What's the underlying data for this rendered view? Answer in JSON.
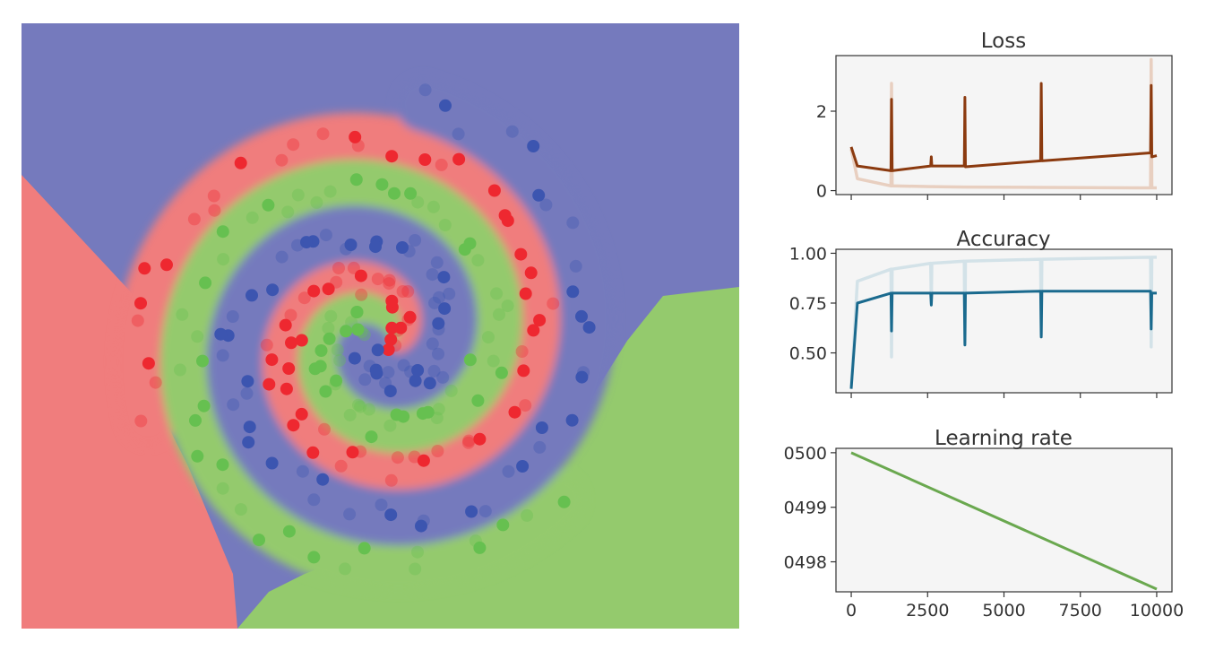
{
  "chart_data": [
    {
      "type": "scatter",
      "title": "",
      "description_colors": {
        "class_red": "#ee2830",
        "class_green": "#66c050",
        "class_blue": "#3c55b0",
        "region_red": "#f07d7d",
        "region_green": "#94ca6d",
        "region_blue": "#757abd"
      },
      "classes": [
        "red",
        "green",
        "blue"
      ],
      "spiral_arms": 3,
      "grid": false
    },
    {
      "type": "line",
      "title": "Loss",
      "x": [
        0,
        200,
        1300,
        1320,
        1340,
        2600,
        2620,
        2640,
        3700,
        3720,
        3740,
        6200,
        6220,
        6240,
        9800,
        9820,
        9840,
        10000
      ],
      "series": [
        {
          "values": [
            1.1,
            0.62,
            0.5,
            2.3,
            0.5,
            0.62,
            0.85,
            0.62,
            0.62,
            2.35,
            0.6,
            0.75,
            2.7,
            0.75,
            0.95,
            2.65,
            0.85,
            0.88
          ],
          "color": "#8b3a0f"
        },
        {
          "values": [
            1.05,
            0.3,
            0.12,
            2.7,
            0.12,
            0.1,
            0.1,
            0.1,
            0.09,
            0.09,
            0.09,
            0.08,
            0.08,
            0.08,
            0.07,
            3.3,
            0.07,
            0.07
          ],
          "color": "#e8cfc0"
        }
      ],
      "yticks": [
        0,
        2
      ],
      "ylim": [
        -0.1,
        3.4
      ],
      "xlim": [
        -500,
        10500
      ],
      "grid": false
    },
    {
      "type": "line",
      "title": "Accuracy",
      "x": [
        0,
        200,
        1300,
        1320,
        1340,
        2600,
        2620,
        2640,
        3700,
        3720,
        3740,
        6200,
        6220,
        6240,
        9800,
        9820,
        9840,
        10000
      ],
      "series": [
        {
          "values": [
            0.32,
            0.75,
            0.8,
            0.61,
            0.8,
            0.8,
            0.74,
            0.8,
            0.8,
            0.54,
            0.8,
            0.81,
            0.58,
            0.81,
            0.81,
            0.62,
            0.8,
            0.8
          ],
          "color": "#1a6a8e"
        },
        {
          "values": [
            0.33,
            0.86,
            0.92,
            0.48,
            0.92,
            0.95,
            0.75,
            0.95,
            0.96,
            0.55,
            0.96,
            0.97,
            0.59,
            0.97,
            0.98,
            0.53,
            0.98,
            0.98
          ],
          "color": "#d3e2e8"
        }
      ],
      "yticks": [
        "0.50",
        "0.75",
        "1.00"
      ],
      "ylim": [
        0.3,
        1.02
      ],
      "xlim": [
        -500,
        10500
      ],
      "grid": false
    },
    {
      "type": "line",
      "title": "Learning rate",
      "x": [
        0,
        10000
      ],
      "series": [
        {
          "values": [
            0.05,
            0.04975
          ],
          "color": "#6aa84f"
        }
      ],
      "yticks": [
        "0498",
        "0499",
        "0500"
      ],
      "ytick_values": [
        0.0498,
        0.0499,
        0.05
      ],
      "ylim": [
        0.049745,
        0.050008
      ],
      "xticks": [
        "0",
        "2500",
        "5000",
        "7500",
        "10000"
      ],
      "xtick_values": [
        0,
        2500,
        5000,
        7500,
        10000
      ],
      "xlim": [
        -500,
        10500
      ],
      "grid": false
    }
  ]
}
